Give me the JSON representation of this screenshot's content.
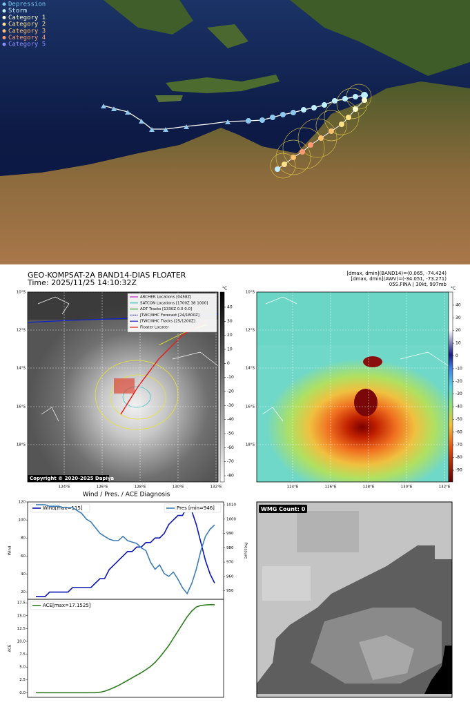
{
  "map": {
    "legend": [
      {
        "label": "Depression",
        "color": "#7ec8f0"
      },
      {
        "label": "Storm",
        "color": "#c8f4ff"
      },
      {
        "label": "Category 1",
        "color": "#ffffd0"
      },
      {
        "label": "Category 2",
        "color": "#ffe38a"
      },
      {
        "label": "Category 3",
        "color": "#ffc070"
      },
      {
        "label": "Category 4",
        "color": "#ff9a70"
      },
      {
        "label": "Category 5",
        "color": "#8f8fff"
      }
    ]
  },
  "satellite": {
    "title": "GEO-KOMPSAT-2A BAND14-DIAS FLOATER",
    "time": "Time: 2025/11/25 14:10:32Z",
    "stats": [
      "[dmax, dmin](BAND14)=(0.065, -74.424)",
      "[dmax, dmin](AWV)=(-34.051, -73.271)",
      "05S.FINA | 30kt, 997mb"
    ],
    "legend": [
      "ARCHER Locations [0458Z]",
      "SATCON Locations [1700Z 38 1000]",
      "ADT Tracks [1330Z 0.0 0.0]",
      "JTWC/NHC Forecast [24/1800Z]",
      "JTWC/NHC Tracks [25/1200Z]",
      "Floater Locater"
    ],
    "copyright": "Copyright © 2020-2025 Dapiya",
    "lat_labels": [
      "10°S",
      "12°S",
      "14°S",
      "16°S",
      "18°S"
    ],
    "lon_labels": [
      "124°E",
      "126°E",
      "128°E",
      "130°E",
      "132°E"
    ],
    "ir_colorbar": {
      "unit": "°C",
      "lim": [
        -84.4,
        50.8
      ],
      "ticks": [
        40,
        30,
        20,
        10,
        0,
        -10,
        -20,
        -30,
        -40,
        -50,
        -60,
        -70,
        -80
      ]
    },
    "awv_colorbar": {
      "unit": "°C",
      "lim": [
        -99.2,
        50.3
      ],
      "ticks": [
        40,
        30,
        20,
        10,
        0,
        -10,
        -20,
        -30,
        -40,
        -50,
        -60,
        -70,
        -80,
        -90
      ]
    }
  },
  "chart_data": [
    {
      "type": "line",
      "title": "Wind / Pres. / ACE Diagnosis",
      "ylabel": "Wind",
      "y2label": "Pressure",
      "ylim": [
        12,
        120
      ],
      "yticks": [
        20,
        40,
        60,
        80,
        100,
        120
      ],
      "y2lim": [
        944,
        1012
      ],
      "y2ticks": [
        950,
        960,
        970,
        980,
        990,
        1000,
        1010
      ],
      "series": [
        {
          "name": "Wind[max=115]",
          "color": "#0a14b4",
          "values": [
            15,
            15,
            15,
            20,
            20,
            20,
            20,
            20,
            25,
            25,
            25,
            25,
            25,
            30,
            35,
            35,
            45,
            50,
            55,
            60,
            65,
            65,
            70,
            70,
            75,
            75,
            80,
            80,
            85,
            95,
            100,
            105,
            105,
            115,
            110,
            95,
            75,
            55,
            40,
            30
          ]
        },
        {
          "name": "Pres [min=946]",
          "color": "#3d7db5",
          "axis": "y2",
          "values": [
            1010,
            1010,
            1010,
            1009,
            1009,
            1009,
            1008,
            1008,
            1008,
            1006,
            1004,
            1000,
            998,
            994,
            990,
            988,
            986,
            985,
            985,
            988,
            985,
            984,
            983,
            980,
            978,
            970,
            965,
            968,
            962,
            960,
            963,
            958,
            952,
            948,
            955,
            965,
            978,
            988,
            993,
            996
          ]
        }
      ]
    },
    {
      "type": "line",
      "ylabel": "ACE",
      "ylim": [
        -0.9,
        18.2
      ],
      "yticks": [
        {
          "value": 0,
          "label": "0.0"
        },
        {
          "value": 2.5,
          "label": "2.5"
        },
        {
          "value": 5,
          "label": "5.0"
        },
        {
          "value": 7.5,
          "label": "7.5"
        },
        {
          "value": 10,
          "label": "10.0"
        },
        {
          "value": 12.5,
          "label": "12.5"
        },
        {
          "value": 15,
          "label": "15.0"
        },
        {
          "value": 17.5,
          "label": "17.5"
        }
      ],
      "series": [
        {
          "name": "ACE[max=17.1525]",
          "color": "#2e7d1e",
          "values": [
            0,
            0,
            0,
            0,
            0,
            0,
            0,
            0,
            0,
            0,
            0,
            0,
            0,
            0,
            0.1,
            0.3,
            0.6,
            1.0,
            1.4,
            1.9,
            2.4,
            2.9,
            3.4,
            3.9,
            4.5,
            5.1,
            5.9,
            6.9,
            8.0,
            9.2,
            10.6,
            12.0,
            13.4,
            14.8,
            15.9,
            16.7,
            17.0,
            17.1,
            17.15,
            17.15
          ]
        }
      ]
    }
  ],
  "wmg": {
    "label": "WMG Count: 0"
  }
}
